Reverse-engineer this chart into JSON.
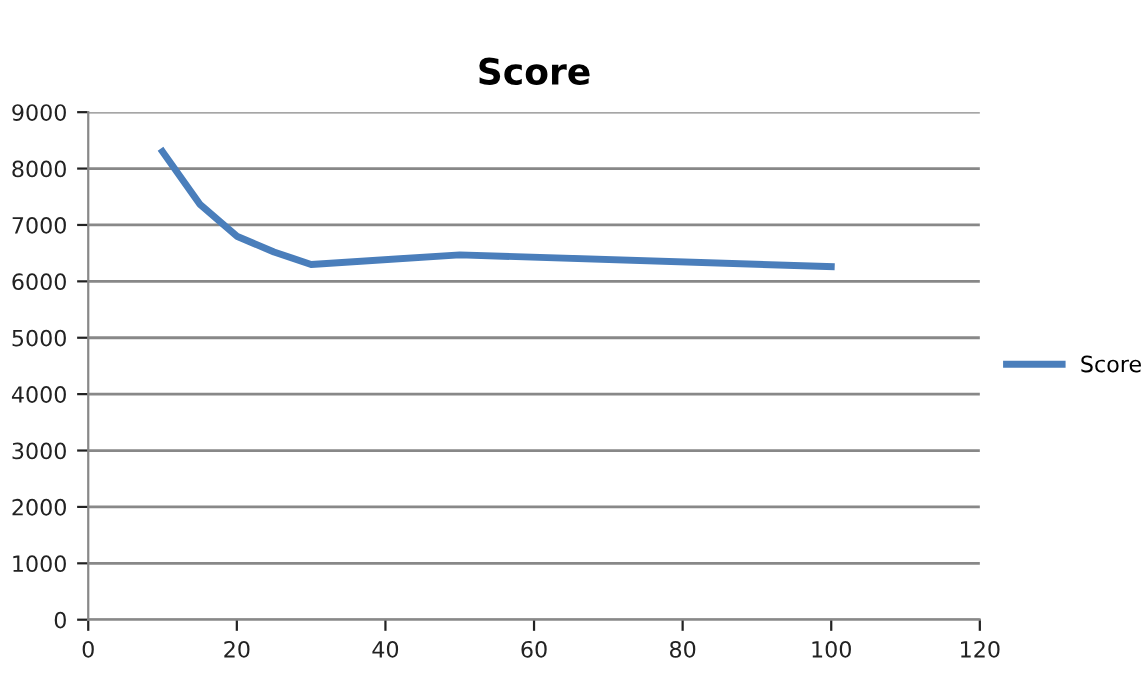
{
  "chart_data": {
    "type": "line",
    "title": "Score",
    "series": [
      {
        "name": "Score",
        "color": "#4a7ebb",
        "x": [
          10,
          15,
          20,
          25,
          30,
          50,
          100
        ],
        "values": [
          8300,
          7370,
          6800,
          6520,
          6300,
          6470,
          6260
        ]
      }
    ],
    "xlim": [
      0,
      120
    ],
    "xticks": [
      0,
      20,
      40,
      60,
      80,
      100,
      120
    ],
    "ylim": [
      0,
      9000
    ],
    "yticks": [
      0,
      1000,
      2000,
      3000,
      4000,
      5000,
      6000,
      7000,
      8000,
      9000
    ],
    "grid": "y",
    "legend": "right",
    "marker": "none",
    "line_style": "solid"
  }
}
